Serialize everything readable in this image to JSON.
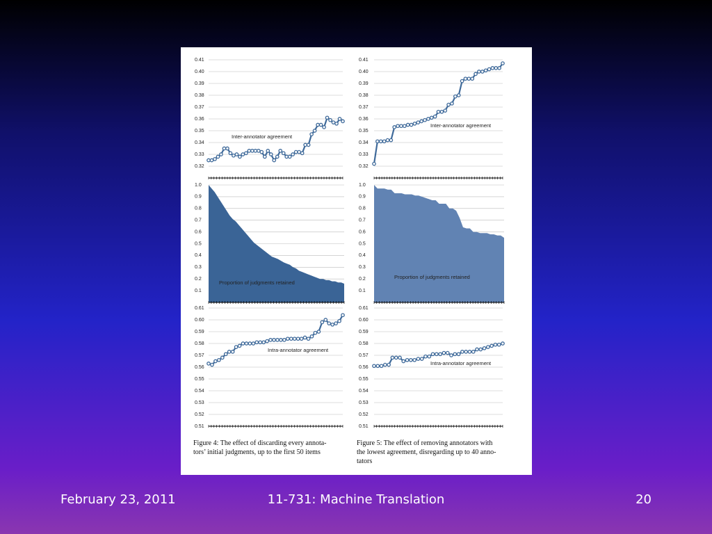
{
  "chart_data": [
    {
      "type": "line",
      "annotation": "Inter-annotator agreement",
      "color": "#3f6a9a",
      "values": [
        0.325,
        0.325,
        0.326,
        0.328,
        0.33,
        0.335,
        0.335,
        0.331,
        0.329,
        0.33,
        0.328,
        0.33,
        0.331,
        0.333,
        0.333,
        0.333,
        0.333,
        0.332,
        0.328,
        0.333,
        0.33,
        0.325,
        0.328,
        0.333,
        0.331,
        0.328,
        0.328,
        0.33,
        0.332,
        0.332,
        0.331,
        0.338,
        0.338,
        0.347,
        0.35,
        0.355,
        0.355,
        0.353,
        0.361,
        0.359,
        0.357,
        0.356,
        0.36,
        0.358
      ],
      "ylim": [
        0.31,
        0.41
      ],
      "yticks": [
        0.32,
        0.33,
        0.34,
        0.35,
        0.36,
        0.37,
        0.38,
        0.39,
        {
          "value": 0.4,
          "label": "0.40"
        },
        0.41
      ],
      "grid": true
    },
    {
      "type": "area",
      "annotation": "Proportion of judgments retained",
      "color": "#3a6496",
      "values": [
        1.0,
        0.97,
        0.94,
        0.9,
        0.86,
        0.82,
        0.78,
        0.74,
        0.71,
        0.69,
        0.66,
        0.63,
        0.6,
        0.57,
        0.54,
        0.51,
        0.49,
        0.47,
        0.45,
        0.43,
        0.41,
        0.39,
        0.38,
        0.37,
        0.355,
        0.34,
        0.33,
        0.32,
        0.3,
        0.29,
        0.27,
        0.26,
        0.25,
        0.24,
        0.23,
        0.22,
        0.21,
        0.2,
        0.2,
        0.19,
        0.19,
        0.18,
        0.18,
        0.17,
        0.17,
        0.16
      ],
      "ylim": [
        0,
        1
      ],
      "yticks": [
        0.1,
        0.2,
        0.3,
        0.4,
        0.5,
        0.6,
        0.7,
        0.8,
        0.9,
        {
          "value": 1,
          "label": "1.0"
        }
      ],
      "grid": true
    },
    {
      "type": "line",
      "annotation": "Intra-annotator agreement",
      "color": "#3f6a9a",
      "values": [
        0.563,
        0.562,
        0.565,
        0.566,
        0.568,
        0.571,
        0.573,
        0.573,
        0.577,
        0.578,
        0.58,
        0.58,
        0.58,
        0.58,
        0.581,
        0.581,
        0.581,
        0.582,
        0.583,
        0.583,
        0.583,
        0.583,
        0.583,
        0.584,
        0.584,
        0.584,
        0.584,
        0.584,
        0.585,
        0.584,
        0.586,
        0.589,
        0.59,
        0.598,
        0.6,
        0.597,
        0.596,
        0.597,
        0.599,
        0.604
      ],
      "ylim": [
        0.51,
        0.61
      ],
      "yticks": [
        0.51,
        0.52,
        0.53,
        0.54,
        0.55,
        0.56,
        0.57,
        0.58,
        0.59,
        {
          "value": 0.6,
          "label": "0.60"
        },
        0.61
      ],
      "grid": true
    },
    {
      "type": "line",
      "annotation": "Inter-annotator agreement",
      "color": "#3f6a9a",
      "values": [
        0.322,
        0.341,
        0.341,
        0.341,
        0.342,
        0.342,
        0.353,
        0.354,
        0.354,
        0.354,
        0.355,
        0.355,
        0.356,
        0.357,
        0.358,
        0.359,
        0.36,
        0.361,
        0.362,
        0.366,
        0.366,
        0.367,
        0.372,
        0.373,
        0.379,
        0.38,
        0.392,
        0.394,
        0.394,
        0.394,
        0.398,
        0.4,
        0.4,
        0.401,
        0.402,
        0.403,
        0.403,
        0.403,
        0.407
      ],
      "ylim": [
        0.31,
        0.41
      ],
      "yticks": [
        0.32,
        0.33,
        0.34,
        0.35,
        0.36,
        0.37,
        0.38,
        0.39,
        {
          "value": 0.4,
          "label": "0.40"
        },
        0.41
      ],
      "grid": true
    },
    {
      "type": "area",
      "annotation": "Proportion of judgments retained",
      "color": "#6183b3",
      "values": [
        1.0,
        0.97,
        0.97,
        0.97,
        0.96,
        0.96,
        0.93,
        0.93,
        0.93,
        0.92,
        0.92,
        0.92,
        0.91,
        0.91,
        0.9,
        0.89,
        0.88,
        0.87,
        0.87,
        0.84,
        0.84,
        0.84,
        0.8,
        0.8,
        0.78,
        0.72,
        0.64,
        0.63,
        0.63,
        0.6,
        0.6,
        0.59,
        0.59,
        0.59,
        0.58,
        0.58,
        0.57,
        0.57,
        0.55
      ],
      "ylim": [
        0,
        1
      ],
      "yticks": [
        0.1,
        0.2,
        0.3,
        0.4,
        0.5,
        0.6,
        0.7,
        0.8,
        0.9,
        {
          "value": 1,
          "label": "1.0"
        }
      ],
      "grid": true
    },
    {
      "type": "line",
      "annotation": "Intra-annotator agreement",
      "color": "#3f6a9a",
      "values": [
        0.561,
        0.561,
        0.561,
        0.562,
        0.562,
        0.568,
        0.568,
        0.568,
        0.565,
        0.566,
        0.566,
        0.566,
        0.567,
        0.567,
        0.569,
        0.569,
        0.571,
        0.571,
        0.571,
        0.572,
        0.572,
        0.57,
        0.571,
        0.571,
        0.573,
        0.573,
        0.573,
        0.573,
        0.575,
        0.575,
        0.576,
        0.577,
        0.578,
        0.579,
        0.579,
        0.58
      ],
      "ylim": [
        0.51,
        0.61
      ],
      "yticks": [
        0.51,
        0.52,
        0.53,
        0.54,
        0.55,
        0.56,
        0.57,
        0.58,
        0.59,
        {
          "value": 0.6,
          "label": "0.60"
        },
        0.61
      ],
      "grid": true
    }
  ],
  "captions": [
    [
      "Figure 4:  The effect of discarding every annota-",
      "tors’ initial judgments, up to the first 50 items"
    ],
    [
      "Figure 5: The effect of removing annotators with",
      "the lowest agreement, disregarding up to 40 anno-",
      "tators"
    ]
  ],
  "footer": {
    "date": "February 23, 2011",
    "course": "11-731: Machine Translation",
    "page": "20"
  }
}
